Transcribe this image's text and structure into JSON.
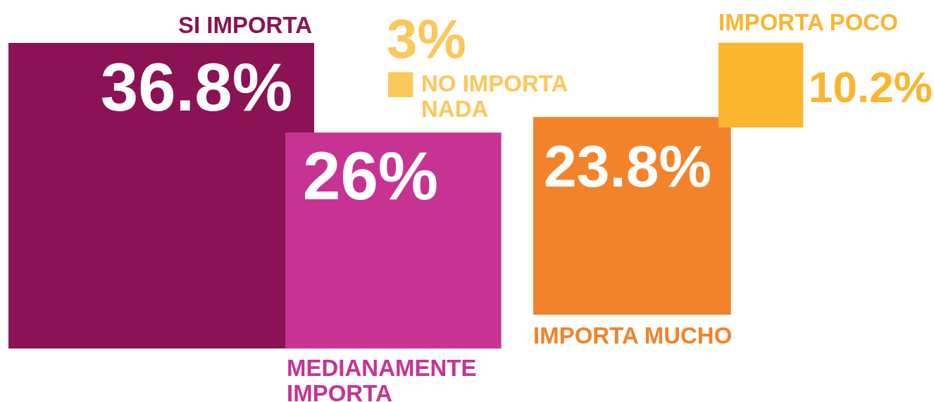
{
  "chart_data": {
    "type": "other",
    "categories": [
      "SI IMPORTA",
      "MEDIANAMENTE IMPORTA",
      "NO IMPORTA NADA",
      "IMPORTA MUCHO",
      "IMPORTA POCO"
    ],
    "values": [
      36.8,
      26,
      3,
      23.8,
      10.2
    ],
    "value_labels": [
      "36.8%",
      "26%",
      "3%",
      "23.8%",
      "10.2%"
    ],
    "colors": [
      "#8b1254",
      "#c73393",
      "#fcc75b",
      "#f2832b",
      "#fbb52f"
    ]
  }
}
